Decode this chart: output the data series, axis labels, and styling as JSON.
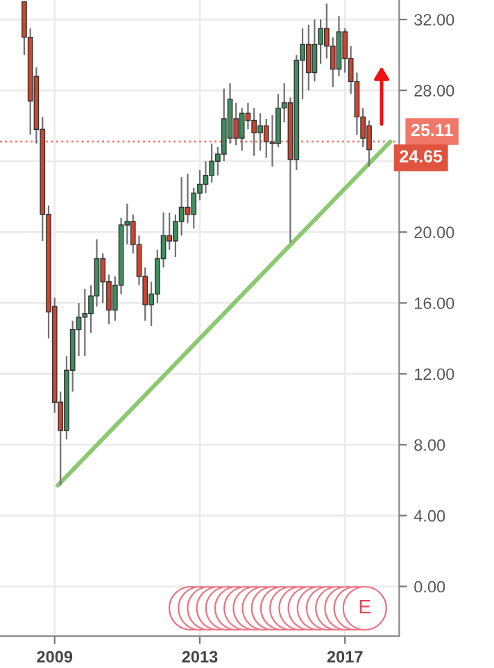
{
  "chart_data": {
    "type": "candlestick",
    "x": [
      "2008-03",
      "2008-05",
      "2008-07",
      "2008-09",
      "2008-11",
      "2009-01",
      "2009-03",
      "2009-05",
      "2009-07",
      "2009-09",
      "2009-11",
      "2010-01",
      "2010-03",
      "2010-05",
      "2010-07",
      "2010-09",
      "2010-11",
      "2011-01",
      "2011-03",
      "2011-05",
      "2011-07",
      "2011-09",
      "2011-11",
      "2012-01",
      "2012-03",
      "2012-05",
      "2012-07",
      "2012-09",
      "2012-11",
      "2013-01",
      "2013-03",
      "2013-05",
      "2013-07",
      "2013-09",
      "2013-11",
      "2014-01",
      "2014-03",
      "2014-05",
      "2014-07",
      "2014-09",
      "2014-11",
      "2015-01",
      "2015-03",
      "2015-05",
      "2015-07",
      "2015-09",
      "2015-11",
      "2016-01",
      "2016-03",
      "2016-05",
      "2016-07",
      "2016-09",
      "2016-11",
      "2017-01",
      "2017-03",
      "2017-05",
      "2017-07",
      "2017-09"
    ],
    "ohlc": [
      [
        33.0,
        33.0,
        30.0,
        31.0
      ],
      [
        31.0,
        31.5,
        25.5,
        27.4
      ],
      [
        28.8,
        29.3,
        25.0,
        25.8
      ],
      [
        25.8,
        26.5,
        19.5,
        21.0
      ],
      [
        21.0,
        21.5,
        14.0,
        15.5
      ],
      [
        15.8,
        16.3,
        9.8,
        10.4
      ],
      [
        10.4,
        11.0,
        5.7,
        8.8
      ],
      [
        8.8,
        13.0,
        8.3,
        12.2
      ],
      [
        12.2,
        15.0,
        11.0,
        14.5
      ],
      [
        14.5,
        16.0,
        13.0,
        15.2
      ],
      [
        15.2,
        16.8,
        13.0,
        15.4
      ],
      [
        15.4,
        17.0,
        14.3,
        16.4
      ],
      [
        16.4,
        19.6,
        15.8,
        18.5
      ],
      [
        18.5,
        18.8,
        16.0,
        17.2
      ],
      [
        17.2,
        17.6,
        14.8,
        15.6
      ],
      [
        15.6,
        17.5,
        15.0,
        17.0
      ],
      [
        17.0,
        20.8,
        16.5,
        20.4
      ],
      [
        20.4,
        21.6,
        19.3,
        20.6
      ],
      [
        20.6,
        21.0,
        18.8,
        19.3
      ],
      [
        19.3,
        19.8,
        17.0,
        17.5
      ],
      [
        17.5,
        18.0,
        15.0,
        15.9
      ],
      [
        15.9,
        17.2,
        14.7,
        16.5
      ],
      [
        16.5,
        19.0,
        16.0,
        18.5
      ],
      [
        18.5,
        21.1,
        18.0,
        19.8
      ],
      [
        19.8,
        21.1,
        19.0,
        19.5
      ],
      [
        19.5,
        21.0,
        18.6,
        20.6
      ],
      [
        20.6,
        23.1,
        19.8,
        21.4
      ],
      [
        21.4,
        23.3,
        20.5,
        21.0
      ],
      [
        21.0,
        22.5,
        20.2,
        22.2
      ],
      [
        22.2,
        23.5,
        21.8,
        22.7
      ],
      [
        22.7,
        24.0,
        22.2,
        23.2
      ],
      [
        23.2,
        25.0,
        22.8,
        24.0
      ],
      [
        24.0,
        24.8,
        23.2,
        24.4
      ],
      [
        24.4,
        28.1,
        24.0,
        26.4
      ],
      [
        25.3,
        28.4,
        25.0,
        27.5
      ],
      [
        26.4,
        27.3,
        24.9,
        25.3
      ],
      [
        25.3,
        27.0,
        24.6,
        26.7
      ],
      [
        26.7,
        27.3,
        25.8,
        26.3
      ],
      [
        26.3,
        27.0,
        24.3,
        25.6
      ],
      [
        25.6,
        26.7,
        24.6,
        26.0
      ],
      [
        26.0,
        26.4,
        24.2,
        25.1
      ],
      [
        25.1,
        26.6,
        23.7,
        25.0
      ],
      [
        25.0,
        27.8,
        24.8,
        27.0
      ],
      [
        27.0,
        28.4,
        26.2,
        27.3
      ],
      [
        27.3,
        27.6,
        19.4,
        24.1
      ],
      [
        24.1,
        30.0,
        23.5,
        29.7
      ],
      [
        29.7,
        31.5,
        27.5,
        30.6
      ],
      [
        30.6,
        31.7,
        28.0,
        29.0
      ],
      [
        29.0,
        32.0,
        28.5,
        30.6
      ],
      [
        30.6,
        32.0,
        29.5,
        31.5
      ],
      [
        31.5,
        32.9,
        29.8,
        30.5
      ],
      [
        30.5,
        31.0,
        28.2,
        29.2
      ],
      [
        29.2,
        32.2,
        28.8,
        31.3
      ],
      [
        31.3,
        31.5,
        29.0,
        29.8
      ],
      [
        29.8,
        30.5,
        27.8,
        28.5
      ],
      [
        28.5,
        29.0,
        25.5,
        26.5
      ],
      [
        26.5,
        27.0,
        24.8,
        25.3
      ],
      [
        26.0,
        26.3,
        23.7,
        24.65
      ]
    ],
    "colors": [
      "#d4432c",
      "#d4432c",
      "#d4432c",
      "#d4432c",
      "#d4432c",
      "#d4432c",
      "#d4432c",
      "#3e8e5e",
      "#3e8e5e",
      "#3e8e5e",
      "#3e8e5e",
      "#3e8e5e",
      "#3e8e5e",
      "#d4432c",
      "#d4432c",
      "#3e8e5e",
      "#3e8e5e",
      "#3e8e5e",
      "#d4432c",
      "#d4432c",
      "#d4432c",
      "#3e8e5e",
      "#3e8e5e",
      "#3e8e5e",
      "#d4432c",
      "#3e8e5e",
      "#3e8e5e",
      "#d4432c",
      "#3e8e5e",
      "#3e8e5e",
      "#3e8e5e",
      "#3e8e5e",
      "#3e8e5e",
      "#3e8e5e",
      "#3e8e5e",
      "#d4432c",
      "#3e8e5e",
      "#d4432c",
      "#d4432c",
      "#3e8e5e",
      "#d4432c",
      "#d4432c",
      "#3e8e5e",
      "#3e8e5e",
      "#d4432c",
      "#3e8e5e",
      "#3e8e5e",
      "#d4432c",
      "#3e8e5e",
      "#3e8e5e",
      "#d4432c",
      "#d4432c",
      "#3e8e5e",
      "#d4432c",
      "#d4432c",
      "#d4432c",
      "#d4432c",
      "#d4432c"
    ],
    "series": [
      {
        "type": "line",
        "color": "#8cc870",
        "x": [
          "2009-02",
          "2018-04"
        ],
        "values": [
          5.7,
          25.1
        ]
      }
    ],
    "xlim": [
      "2007-07",
      "2018-07"
    ],
    "xticks": [
      "2009",
      "2013",
      "2017"
    ],
    "ylim": [
      -2.8,
      33.1
    ],
    "yticks": [
      {
        "value": 0,
        "label": "0.00"
      },
      {
        "value": 4,
        "label": "4.00"
      },
      {
        "value": 8,
        "label": "8.00"
      },
      {
        "value": 12,
        "label": "12.00"
      },
      {
        "value": 16,
        "label": "16.00"
      },
      {
        "value": 20,
        "label": "20.00"
      },
      {
        "value": 24,
        "label": null
      },
      {
        "value": 28,
        "label": "28.00"
      },
      {
        "value": 32,
        "label": "32.00"
      }
    ],
    "ref_lines": [
      {
        "axis": "y",
        "value": 25.11,
        "label": "25.11",
        "color": "#f07868",
        "line_style": "dotted"
      }
    ],
    "annotations": [
      {
        "text": "24.65",
        "x": "2017-09",
        "y": 24.65
      },
      "E"
    ],
    "grid": true
  }
}
